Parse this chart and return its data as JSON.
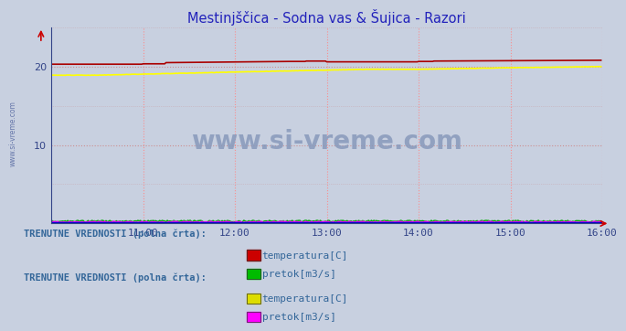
{
  "title": "Mestinjščica - Sodna vas & Šujica - Razori",
  "title_color": "#2222bb",
  "bg_color": "#c8d0e0",
  "plot_bg_color": "#c8d0e0",
  "watermark_text": "www.si-vreme.com",
  "watermark_color": "#8899bb",
  "xlabel_color": "#334488",
  "ylabel_color": "#334488",
  "grid_color_v": "#ff8888",
  "grid_color_h": "#cc8888",
  "xlim": [
    0,
    432
  ],
  "ylim": [
    0,
    25
  ],
  "yticks": [
    10,
    20
  ],
  "xtick_labels": [
    "11:00",
    "12:00",
    "13:00",
    "14:00",
    "15:00",
    "16:00"
  ],
  "xtick_positions": [
    72,
    144,
    216,
    288,
    360,
    432
  ],
  "n_points": 432,
  "series1_temp_color": "#aa0000",
  "series1_pretok_color": "#00aa00",
  "series2_temp_color": "#ffff00",
  "series2_pretok_color": "#ff00ff",
  "blue_line_color": "#0000cc",
  "legend1_title": "TRENUTNE VREDNOSTI (polna črta):",
  "legend2_title": "TRENUTNE VREDNOSTI (polna črta):",
  "legend1_items": [
    {
      "label": "temperatura[C]",
      "color": "#cc0000"
    },
    {
      "label": "pretok[m3/s]",
      "color": "#00bb00"
    }
  ],
  "legend2_items": [
    {
      "label": "temperatura[C]",
      "color": "#dddd00"
    },
    {
      "label": "pretok[m3/s]",
      "color": "#ff00ff"
    }
  ],
  "legend_text_color": "#336699",
  "legend_title_color": "#336699",
  "arrow_color": "#cc0000",
  "left_label": "www.si-vreme.com",
  "left_label_color": "#6677aa",
  "axis_color": "#334488",
  "bottom_line_color": "#0000aa"
}
